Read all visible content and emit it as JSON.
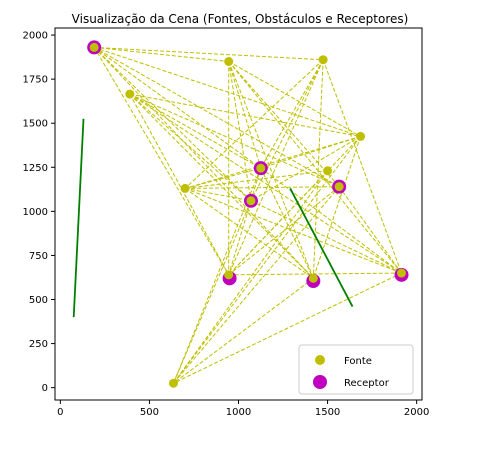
{
  "chart_data": {
    "type": "scatter",
    "title": "Visualização da Cena (Fontes, Obstáculos e Receptores)",
    "xlabel": "",
    "ylabel": "",
    "xlim": [
      -30,
      2030
    ],
    "ylim": [
      -70,
      2040
    ],
    "xticks": [
      0,
      500,
      1000,
      1500,
      2000
    ],
    "yticks": [
      0,
      250,
      500,
      750,
      1000,
      1250,
      1500,
      1750,
      2000
    ],
    "grid": false,
    "legend_placement": "lower-right",
    "colors": {
      "source": "#bfbf00",
      "receiver": "#bf00bf",
      "obstacle": "#008000",
      "path": "#bfbf00"
    },
    "series": [
      {
        "name": "Fonte",
        "marker": "circle-small",
        "points": [
          {
            "x": 190,
            "y": 1930
          },
          {
            "x": 390,
            "y": 1665
          },
          {
            "x": 945,
            "y": 1850
          },
          {
            "x": 1475,
            "y": 1860
          },
          {
            "x": 1685,
            "y": 1425
          },
          {
            "x": 1500,
            "y": 1230
          },
          {
            "x": 700,
            "y": 1130
          },
          {
            "x": 1125,
            "y": 1245
          },
          {
            "x": 1070,
            "y": 1060
          },
          {
            "x": 1565,
            "y": 1140
          },
          {
            "x": 945,
            "y": 640
          },
          {
            "x": 1420,
            "y": 620
          },
          {
            "x": 1915,
            "y": 650
          },
          {
            "x": 635,
            "y": 25
          }
        ]
      },
      {
        "name": "Receptor",
        "marker": "circle-large",
        "points": [
          {
            "x": 190,
            "y": 1930
          },
          {
            "x": 1125,
            "y": 1245
          },
          {
            "x": 1070,
            "y": 1060
          },
          {
            "x": 1565,
            "y": 1140
          },
          {
            "x": 950,
            "y": 620
          },
          {
            "x": 1420,
            "y": 605
          },
          {
            "x": 1915,
            "y": 640
          }
        ]
      }
    ],
    "obstacles": [
      {
        "x1": 75,
        "y1": 400,
        "x2": 130,
        "y2": 1525
      },
      {
        "x1": 1290,
        "y1": 1130,
        "x2": 1640,
        "y2": 460
      }
    ],
    "path_pairs": [
      [
        0,
        2
      ],
      [
        0,
        3
      ],
      [
        0,
        4
      ],
      [
        0,
        7
      ],
      [
        0,
        8
      ],
      [
        0,
        9
      ],
      [
        0,
        10
      ],
      [
        0,
        11
      ],
      [
        1,
        4
      ],
      [
        1,
        7
      ],
      [
        1,
        8
      ],
      [
        1,
        9
      ],
      [
        1,
        10
      ],
      [
        1,
        11
      ],
      [
        1,
        12
      ],
      [
        2,
        4
      ],
      [
        2,
        7
      ],
      [
        2,
        8
      ],
      [
        2,
        9
      ],
      [
        2,
        10
      ],
      [
        2,
        11
      ],
      [
        2,
        12
      ],
      [
        3,
        6
      ],
      [
        3,
        7
      ],
      [
        3,
        8
      ],
      [
        3,
        10
      ],
      [
        3,
        11
      ],
      [
        3,
        12
      ],
      [
        4,
        6
      ],
      [
        4,
        7
      ],
      [
        4,
        8
      ],
      [
        4,
        10
      ],
      [
        4,
        11
      ],
      [
        4,
        13
      ],
      [
        5,
        6
      ],
      [
        5,
        10
      ],
      [
        5,
        13
      ],
      [
        6,
        7
      ],
      [
        6,
        8
      ],
      [
        6,
        9
      ],
      [
        6,
        11
      ],
      [
        6,
        12
      ],
      [
        7,
        10
      ],
      [
        7,
        11
      ],
      [
        7,
        12
      ],
      [
        7,
        13
      ],
      [
        8,
        12
      ],
      [
        8,
        13
      ],
      [
        9,
        10
      ],
      [
        9,
        12
      ],
      [
        9,
        13
      ],
      [
        10,
        12
      ],
      [
        11,
        13
      ],
      [
        12,
        13
      ]
    ]
  }
}
